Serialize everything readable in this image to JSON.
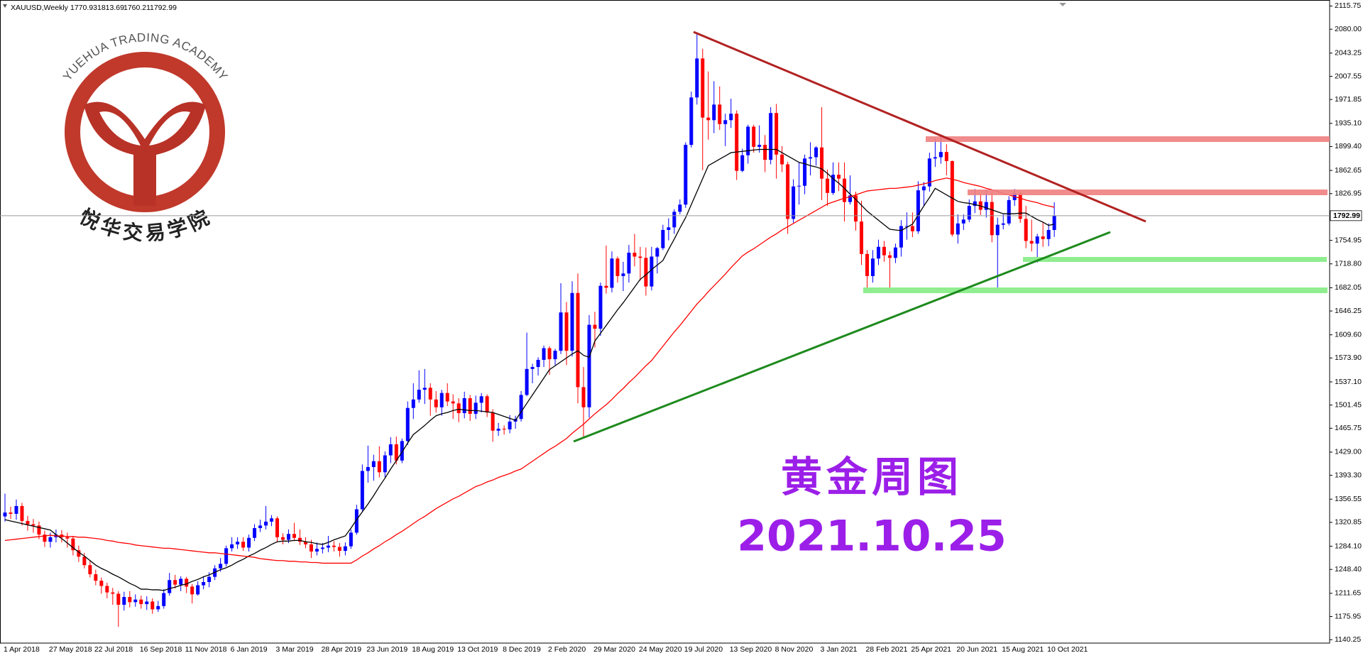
{
  "chart_data": {
    "type": "candlestick",
    "symbol": "XAUUSD,Weekly",
    "bull_color": "#0000ff",
    "bear_color": "#ff0000",
    "grid": false,
    "ylim": [
      1135,
      2125
    ],
    "yticks": [
      2115.75,
      {
        "value": 2080,
        "label": "2080.00"
      },
      2043.25,
      2007.55,
      1971.85,
      {
        "value": 1935.1,
        "label": "1935.10"
      },
      {
        "value": 1899.4,
        "label": "1899.40"
      },
      1862.65,
      1826.95,
      1754.95,
      {
        "value": 1718.8,
        "label": "1718.80"
      },
      1682.05,
      1646.25,
      {
        "value": 1609.6,
        "label": "1609.60"
      },
      {
        "value": 1573.9,
        "label": "1573.90"
      },
      {
        "value": 1537.1,
        "label": "1537.10"
      },
      1501.45,
      1465.75,
      {
        "value": 1429,
        "label": "1429.00"
      },
      {
        "value": 1393.3,
        "label": "1393.30"
      },
      1356.55,
      1320.85,
      {
        "value": 1284.1,
        "label": "1284.10"
      },
      {
        "value": 1248.4,
        "label": "1248.40"
      },
      1211.65,
      1175.95,
      1140.25
    ],
    "categories": [
      "1 Apr 2018",
      null,
      null,
      null,
      null,
      null,
      null,
      null,
      "27 May 2018",
      null,
      null,
      null,
      null,
      null,
      null,
      null,
      "22 Jul 2018",
      null,
      null,
      null,
      null,
      null,
      null,
      null,
      "16 Sep 2018",
      null,
      null,
      null,
      null,
      null,
      null,
      null,
      "11 Nov 2018",
      null,
      null,
      null,
      null,
      null,
      null,
      null,
      "6 Jan 2019",
      null,
      null,
      null,
      null,
      null,
      null,
      null,
      "3 Mar 2019",
      null,
      null,
      null,
      null,
      null,
      null,
      null,
      "28 Apr 2019",
      null,
      null,
      null,
      null,
      null,
      null,
      null,
      "23 Jun 2019",
      null,
      null,
      null,
      null,
      null,
      null,
      null,
      "18 Aug 2019",
      null,
      null,
      null,
      null,
      null,
      null,
      null,
      "13 Oct 2019",
      null,
      null,
      null,
      null,
      null,
      null,
      null,
      "8 Dec 2019",
      null,
      null,
      null,
      null,
      null,
      null,
      null,
      "2 Feb 2020",
      null,
      null,
      null,
      null,
      null,
      null,
      null,
      "29 Mar 2020",
      null,
      null,
      null,
      null,
      null,
      null,
      null,
      "24 May 2020",
      null,
      null,
      null,
      null,
      null,
      null,
      null,
      "19 Jul 2020",
      null,
      null,
      null,
      null,
      null,
      null,
      null,
      "13 Sep 2020",
      null,
      null,
      null,
      null,
      null,
      null,
      null,
      "8 Nov 2020",
      null,
      null,
      null,
      null,
      null,
      null,
      null,
      "3 Jan 2021",
      null,
      null,
      null,
      null,
      null,
      null,
      null,
      "28 Feb 2021",
      null,
      null,
      null,
      null,
      null,
      null,
      null,
      "25 Apr 2021",
      null,
      null,
      null,
      null,
      null,
      null,
      null,
      "20 Jun 2021",
      null,
      null,
      null,
      null,
      null,
      null,
      null,
      "15 Aug 2021",
      null,
      null,
      null,
      null,
      null,
      null,
      null,
      "10 Oct 2021",
      null
    ],
    "first_open": 1330,
    "close": [
      1336,
      1334,
      1346,
      1323,
      1318,
      1316,
      1302,
      1291,
      1298,
      1302,
      1298,
      1296,
      1278,
      1268,
      1255,
      1241,
      1231,
      1223,
      1213,
      1211,
      1194,
      1206,
      1198,
      1202,
      1195,
      1199,
      1187,
      1192,
      1212,
      1232,
      1225,
      1234,
      1222,
      1210,
      1224,
      1229,
      1237,
      1250,
      1257,
      1281,
      1287,
      1291,
      1282,
      1297,
      1312,
      1316,
      1322,
      1327,
      1298,
      1294,
      1303,
      1297,
      1291,
      1287,
      1276,
      1280,
      1282,
      1285,
      1283,
      1277,
      1284,
      1305,
      1341,
      1400,
      1406,
      1415,
      1398,
      1424,
      1441,
      1416,
      1446,
      1497,
      1510,
      1525,
      1528,
      1510,
      1498,
      1520,
      1507,
      1504,
      1489,
      1512,
      1488,
      1505,
      1515,
      1490,
      1462,
      1465,
      1464,
      1476,
      1480,
      1517,
      1557,
      1560,
      1571,
      1589,
      1572,
      1585,
      1644,
      1585,
      1674,
      1529,
      1498,
      1625,
      1619,
      1685,
      1682,
      1727,
      1700,
      1704,
      1736,
      1730,
      1728,
      1684,
      1730,
      1743,
      1771,
      1775,
      1799,
      1810,
      1902,
      1975,
      2035,
      1944,
      1940,
      1964,
      1934,
      1940,
      1950,
      1862,
      1886,
      1930,
      1899,
      1902,
      1879,
      1951,
      1887,
      1872,
      1788,
      1838,
      1839,
      1881,
      1883,
      1898,
      1850,
      1828,
      1856,
      1850,
      1814,
      1824,
      1784,
      1734,
      1700,
      1727,
      1745,
      1732,
      1728,
      1744,
      1777,
      1777,
      1769,
      1832,
      1838,
      1881,
      1883,
      1891,
      1877,
      1764,
      1781,
      1787,
      1808,
      1815,
      1802,
      1814,
      1763,
      1779,
      1781,
      1817,
      1827,
      1788,
      1754,
      1750,
      1761,
      1757,
      1770.93,
      1792.99
    ],
    "high": [
      1365,
      1345,
      1356,
      1351,
      1331,
      1326,
      1322,
      1308,
      1305,
      1310,
      1309,
      1305,
      1300,
      1285,
      1274,
      1262,
      1248,
      1236,
      1228,
      1220,
      1215,
      1214,
      1215,
      1210,
      1208,
      1207,
      1204,
      1200,
      1218,
      1243,
      1240,
      1238,
      1237,
      1226,
      1230,
      1238,
      1244,
      1255,
      1266,
      1285,
      1298,
      1298,
      1298,
      1302,
      1318,
      1325,
      1346,
      1332,
      1330,
      1304,
      1310,
      1320,
      1310,
      1298,
      1294,
      1290,
      1289,
      1300,
      1292,
      1289,
      1290,
      1310,
      1348,
      1410,
      1439,
      1425,
      1438,
      1430,
      1452,
      1453,
      1450,
      1507,
      1535,
      1555,
      1557,
      1535,
      1523,
      1525,
      1535,
      1518,
      1512,
      1522,
      1517,
      1516,
      1520,
      1518,
      1495,
      1474,
      1470,
      1486,
      1485,
      1523,
      1613,
      1565,
      1575,
      1593,
      1592,
      1588,
      1689,
      1660,
      1692,
      1704,
      1560,
      1640,
      1645,
      1690,
      1747,
      1738,
      1730,
      1722,
      1748,
      1765,
      1745,
      1744,
      1745,
      1745,
      1779,
      1789,
      1803,
      1818,
      1906,
      1984,
      2075,
      2050,
      2015,
      2000,
      1992,
      1950,
      1973,
      1955,
      1896,
      1933,
      1933,
      1932,
      1917,
      1960,
      1965,
      1900,
      1876,
      1849,
      1875,
      1887,
      1906,
      1900,
      1960,
      1864,
      1875,
      1875,
      1875,
      1855,
      1830,
      1816,
      1740,
      1740,
      1756,
      1754,
      1738,
      1750,
      1786,
      1798,
      1798,
      1846,
      1845,
      1890,
      1912,
      1916,
      1903,
      1878,
      1795,
      1795,
      1818,
      1834,
      1825,
      1833,
      1831,
      1790,
      1795,
      1823,
      1834,
      1830,
      1808,
      1787,
      1765,
      1782,
      1781,
      1813.69
    ],
    "low": [
      1322,
      1326,
      1325,
      1316,
      1308,
      1305,
      1295,
      1283,
      1282,
      1290,
      1290,
      1282,
      1270,
      1260,
      1250,
      1236,
      1224,
      1211,
      1204,
      1194,
      1160,
      1185,
      1190,
      1191,
      1188,
      1186,
      1180,
      1183,
      1188,
      1208,
      1219,
      1215,
      1212,
      1196,
      1208,
      1218,
      1221,
      1232,
      1245,
      1253,
      1276,
      1280,
      1277,
      1276,
      1292,
      1306,
      1310,
      1315,
      1290,
      1287,
      1289,
      1292,
      1286,
      1281,
      1266,
      1270,
      1273,
      1275,
      1276,
      1268,
      1270,
      1280,
      1302,
      1338,
      1382,
      1385,
      1390,
      1390,
      1412,
      1410,
      1412,
      1440,
      1480,
      1505,
      1503,
      1485,
      1490,
      1485,
      1500,
      1480,
      1475,
      1481,
      1477,
      1480,
      1490,
      1483,
      1445,
      1454,
      1456,
      1458,
      1465,
      1476,
      1515,
      1535,
      1547,
      1560,
      1548,
      1563,
      1580,
      1563,
      1576,
      1504,
      1451,
      1482,
      1590,
      1608,
      1673,
      1675,
      1690,
      1677,
      1690,
      1715,
      1693,
      1670,
      1678,
      1704,
      1740,
      1755,
      1765,
      1795,
      1805,
      1898,
      1964,
      1863,
      1910,
      1920,
      1925,
      1900,
      1928,
      1848,
      1860,
      1873,
      1890,
      1890,
      1860,
      1872,
      1850,
      1860,
      1765,
      1782,
      1810,
      1826,
      1855,
      1870,
      1817,
      1808,
      1825,
      1831,
      1784,
      1810,
      1770,
      1717,
      1677,
      1690,
      1717,
      1722,
      1678,
      1720,
      1730,
      1756,
      1760,
      1765,
      1808,
      1830,
      1868,
      1873,
      1855,
      1761,
      1750,
      1771,
      1783,
      1797,
      1794,
      1790,
      1752,
      1677,
      1772,
      1778,
      1808,
      1782,
      1743,
      1738,
      1721,
      1745,
      1746,
      1760.21
    ],
    "moving_averages": [
      {
        "color": "#000000",
        "values": [
          1325,
          1323,
          1321,
          1319,
          1317,
          1315,
          1313,
          1311,
          1309,
          1302,
          1296,
          1289,
          1282,
          1275,
          1269,
          1262,
          1255,
          1250,
          1246,
          1241,
          1237,
          1232,
          1227,
          1223,
          1218,
          1218,
          1217,
          1217,
          1216,
          1219,
          1221,
          1224,
          1226,
          1230,
          1233,
          1237,
          1240,
          1244,
          1248,
          1251,
          1255,
          1260,
          1264,
          1269,
          1273,
          1278,
          1282,
          1287,
          1291,
          1292,
          1292,
          1293,
          1293,
          1291,
          1290,
          1288,
          1287,
          1290,
          1294,
          1297,
          1300,
          1312,
          1325,
          1337,
          1349,
          1362,
          1376,
          1389,
          1403,
          1416,
          1429,
          1443,
          1456,
          1463,
          1470,
          1478,
          1485,
          1488,
          1490,
          1493,
          1495,
          1494,
          1493,
          1493,
          1492,
          1491,
          1490,
          1487,
          1484,
          1481,
          1478,
          1491,
          1504,
          1517,
          1530,
          1543,
          1556,
          1562,
          1568,
          1574,
          1580,
          1585,
          1578,
          1575,
          1600,
          1612,
          1624,
          1636,
          1648,
          1659,
          1671,
          1683,
          1695,
          1702,
          1710,
          1717,
          1724,
          1741,
          1757,
          1774,
          1790,
          1810,
          1830,
          1850,
          1870,
          1875,
          1880,
          1885,
          1890,
          1891,
          1892,
          1893,
          1894,
          1895,
          1895,
          1895,
          1895,
          1890,
          1885,
          1880,
          1875,
          1873,
          1870,
          1868,
          1865,
          1858,
          1850,
          1843,
          1835,
          1826,
          1818,
          1809,
          1800,
          1793,
          1786,
          1779,
          1772,
          1771,
          1770,
          1775,
          1780,
          1794,
          1808,
          1821,
          1835,
          1830,
          1825,
          1820,
          1815,
          1813,
          1812,
          1810,
          1808,
          1805,
          1802,
          1799,
          1796,
          1796,
          1796,
          1797,
          1797,
          1792,
          1787,
          1783,
          1778,
          1780
        ]
      },
      {
        "color": "#ff0000",
        "values": [
          1293,
          1294,
          1295,
          1296,
          1297,
          1298,
          1299,
          1300,
          1301,
          1300,
          1300,
          1299,
          1299,
          1298,
          1298,
          1297,
          1296,
          1295,
          1293,
          1292,
          1290,
          1289,
          1288,
          1286,
          1285,
          1284,
          1283,
          1282,
          1281,
          1281,
          1280,
          1279,
          1278,
          1277,
          1276,
          1275,
          1274,
          1274,
          1273,
          1272,
          1271,
          1270,
          1269,
          1268,
          1267,
          1265,
          1264,
          1263,
          1262,
          1262,
          1261,
          1261,
          1260,
          1260,
          1259,
          1259,
          1258,
          1258,
          1258,
          1258,
          1258,
          1258,
          1263,
          1269,
          1274,
          1280,
          1285,
          1291,
          1296,
          1302,
          1307,
          1313,
          1319,
          1325,
          1330,
          1336,
          1342,
          1347,
          1352,
          1357,
          1361,
          1366,
          1371,
          1376,
          1379,
          1383,
          1386,
          1390,
          1393,
          1396,
          1400,
          1403,
          1409,
          1415,
          1421,
          1427,
          1433,
          1438,
          1444,
          1450,
          1458,
          1465,
          1472,
          1480,
          1488,
          1495,
          1502,
          1510,
          1519,
          1527,
          1536,
          1544,
          1553,
          1562,
          1570,
          1581,
          1592,
          1603,
          1614,
          1624,
          1635,
          1646,
          1657,
          1666,
          1676,
          1685,
          1694,
          1703,
          1713,
          1722,
          1731,
          1737,
          1742,
          1748,
          1754,
          1760,
          1765,
          1771,
          1776,
          1781,
          1786,
          1791,
          1796,
          1801,
          1806,
          1811,
          1814,
          1817,
          1820,
          1822,
          1825,
          1828,
          1831,
          1832,
          1833,
          1834,
          1835,
          1835,
          1836,
          1837,
          1838,
          1840,
          1842,
          1844,
          1847,
          1849,
          1851,
          1849,
          1847,
          1844,
          1842,
          1840,
          1838,
          1835,
          1833,
          1830,
          1827,
          1825,
          1822,
          1820,
          1817,
          1815,
          1813,
          1810,
          1808,
          1806
        ]
      }
    ]
  },
  "logo": {
    "name_en": "YUEHUA TRADING ACADEMY",
    "name_cn": "悦华交易学院"
  },
  "overlay": {
    "title": "黄金周图",
    "date": "2021.10.25"
  }
}
